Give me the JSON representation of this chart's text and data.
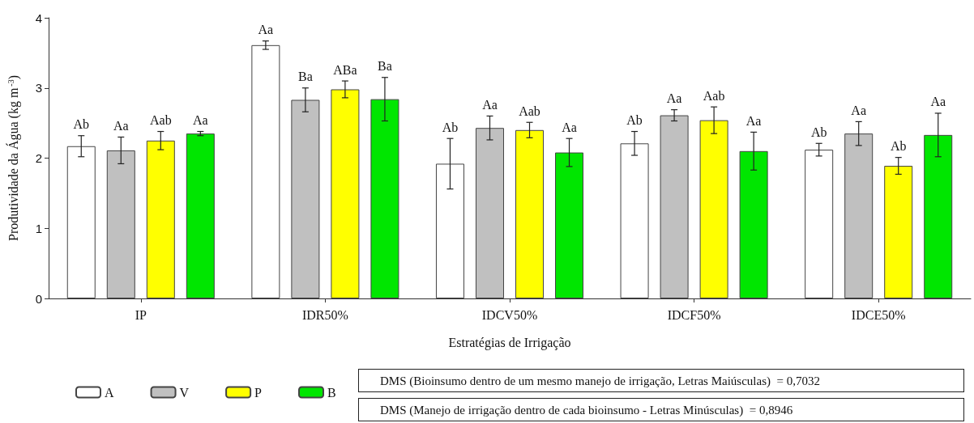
{
  "chart_data": {
    "type": "bar",
    "xlabel": "Estratégias de Irrigação",
    "ylabel": "Produtividade da Água (kg m$^{-3}$)",
    "categories": [
      "IP",
      "IDR50%",
      "IDCV50%",
      "IDCF50%",
      "IDCE50%"
    ],
    "series": [
      {
        "name": "A",
        "color": "#ffffff",
        "values": [
          2.17,
          3.61,
          1.92,
          2.21,
          2.12
        ],
        "errors": [
          0.15,
          0.06,
          0.36,
          0.17,
          0.09
        ],
        "value_labels": [
          "Ab",
          "Aa",
          "Ab",
          "Ab",
          "Ab"
        ]
      },
      {
        "name": "V",
        "color": "#c0c0c0",
        "values": [
          2.11,
          2.83,
          2.43,
          2.61,
          2.35
        ],
        "errors": [
          0.19,
          0.17,
          0.17,
          0.08,
          0.17
        ],
        "value_labels": [
          "Aa",
          "Ba",
          "Aa",
          "Aa",
          "Aa"
        ]
      },
      {
        "name": "P",
        "color": "#ffff00",
        "values": [
          2.25,
          2.98,
          2.4,
          2.54,
          1.89
        ],
        "errors": [
          0.13,
          0.12,
          0.11,
          0.19,
          0.12
        ],
        "value_labels": [
          "Aab",
          "ABa",
          "Aab",
          "Aab",
          "Ab"
        ]
      },
      {
        "name": "B",
        "color": "#00e600",
        "values": [
          2.35,
          2.84,
          2.08,
          2.1,
          2.33
        ],
        "errors": [
          0.03,
          0.31,
          0.2,
          0.27,
          0.31
        ],
        "value_labels": [
          "Aa",
          "Ba",
          "Aa",
          "Aa",
          "Aa"
        ]
      }
    ],
    "ylim": [
      0,
      4
    ],
    "yticks": [
      0,
      1,
      2,
      3,
      4
    ],
    "grid": false,
    "legend": "bottom left",
    "annotations": [
      "DMS (Bioinsumo dentro de um mesmo manejo de irrigação, Letras Maiúsculas)  = 0,7032",
      "DMS (Manejo de irrigação dentro de cada bioinsumo - Letras Minúsculas)  = 0,8946"
    ]
  }
}
